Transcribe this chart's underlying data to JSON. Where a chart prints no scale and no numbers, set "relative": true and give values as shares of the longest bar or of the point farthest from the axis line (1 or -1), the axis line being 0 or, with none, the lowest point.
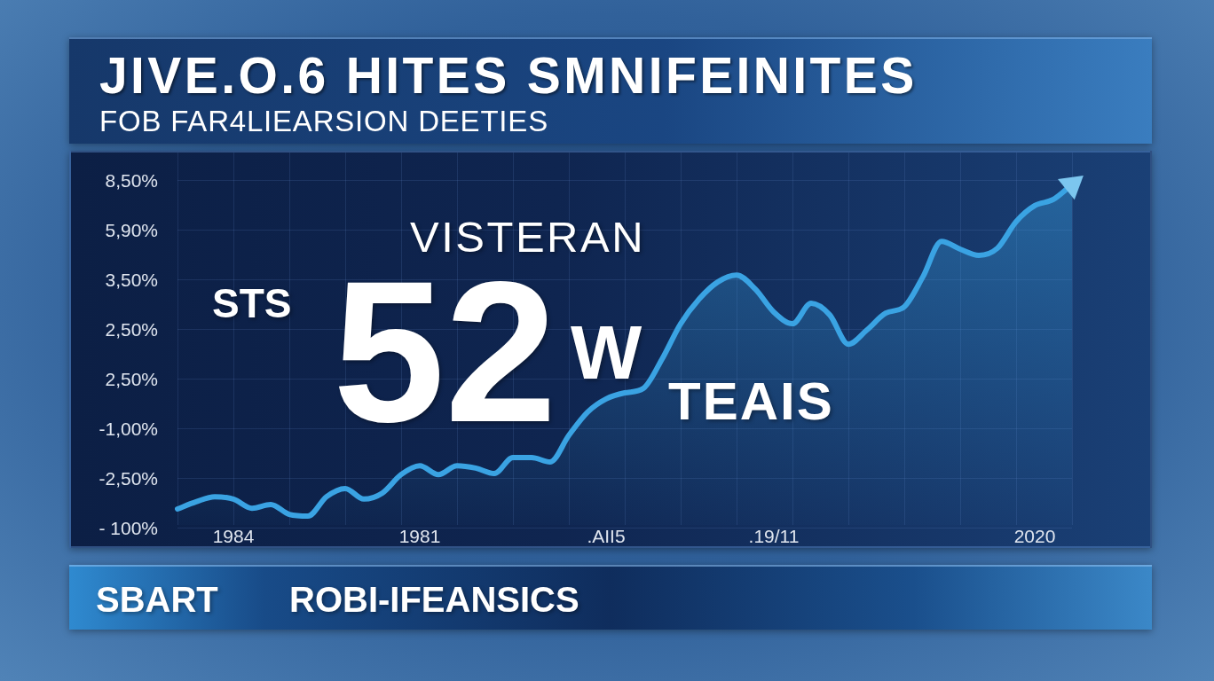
{
  "chart_data": {
    "type": "area",
    "title": "JIVE.O.6 HITES SMNIFEINITES",
    "subtitle": "FOB FAR4LIEARSION DEETIES",
    "categories": [
      null,
      null,
      null,
      "1984",
      null,
      null,
      null,
      null,
      null,
      null,
      null,
      null,
      null,
      "1981",
      null,
      null,
      null,
      null,
      null,
      null,
      null,
      null,
      null,
      ".AII5",
      null,
      null,
      null,
      null,
      null,
      null,
      null,
      null,
      ".19/11",
      null,
      null,
      null,
      null,
      null,
      null,
      null,
      null,
      null,
      null,
      null,
      null,
      null,
      "2020",
      null,
      null
    ],
    "values": [
      0.047,
      0.068,
      0.083,
      0.076,
      0.049,
      0.06,
      0.031,
      0.026,
      0.083,
      0.107,
      0.076,
      0.094,
      0.148,
      0.174,
      0.148,
      0.174,
      0.167,
      0.151,
      0.198,
      0.198,
      0.185,
      0.263,
      0.331,
      0.37,
      0.388,
      0.401,
      0.487,
      0.591,
      0.664,
      0.714,
      0.734,
      0.693,
      0.625,
      0.591,
      0.651,
      0.617,
      0.531,
      0.573,
      0.622,
      0.641,
      0.729,
      0.833,
      0.81,
      0.792,
      0.813,
      0.891,
      0.938,
      0.956,
      1
    ],
    "color": "#3aa3e3",
    "relative": true,
    "grid": true,
    "annotations": [
      "VISTERAN",
      "STS",
      "52",
      "W",
      "TEAIS",
      "8,50%",
      "5,90%",
      "3,50%",
      "2,50%",
      "2,50%",
      "-1,00%",
      "-2,50%",
      "- 100%",
      "SBART",
      "ROBI-IFEANSICS"
    ]
  }
}
